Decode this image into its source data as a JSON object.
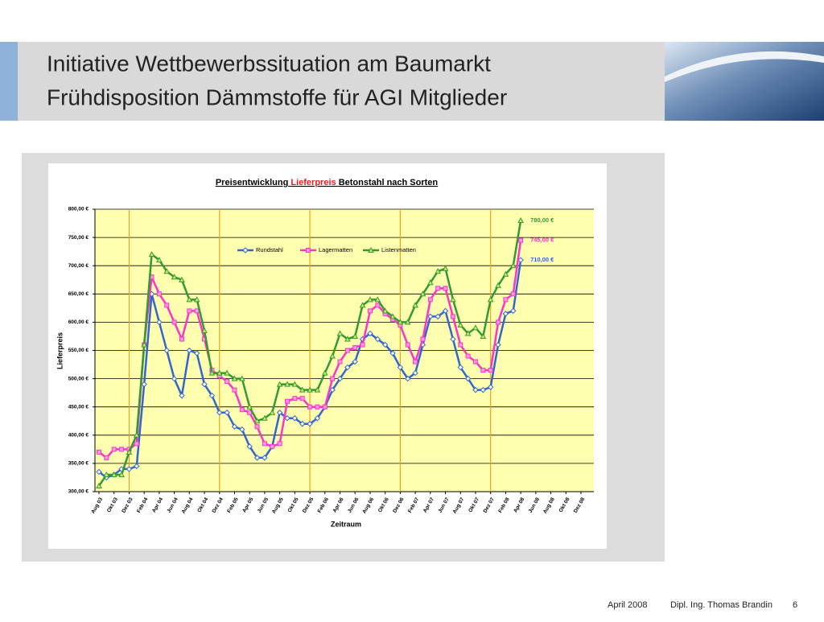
{
  "slide": {
    "title_lines": [
      "Initiative Wettbewerbssituation am Baumarkt",
      "Frühdisposition Dämmstoffe für AGI Mitglieder"
    ],
    "footer": {
      "date": "April 2008",
      "author": "Dipl. Ing. Thomas Brandin",
      "page": "6"
    }
  },
  "chart_data": {
    "type": "line",
    "title": [
      "Preisentwicklung",
      "Lieferpreis",
      "Betonstahl nach Sorten"
    ],
    "x_label": "Zeitraum",
    "y_label": "Lieferpreis",
    "categories": [
      "Aug 03",
      null,
      "Okt 03",
      null,
      "Dez 03",
      null,
      "Feb 04",
      null,
      "Apr 04",
      null,
      "Jun 04",
      null,
      "Aug 04",
      null,
      "Okt 04",
      null,
      "Dez 04",
      null,
      "Feb 05",
      null,
      "Apr 05",
      null,
      "Jun 05",
      null,
      "Aug 05",
      null,
      "Okt 05",
      null,
      "Dez 05",
      null,
      "Feb 06",
      null,
      "Apr 06",
      null,
      "Jun 06",
      null,
      "Aug 06",
      null,
      "Okt 06",
      null,
      "Dez 06",
      null,
      "Feb 07",
      null,
      "Apr 07",
      null,
      "Jun 07",
      null,
      "Aug 07",
      null,
      "Okt 07",
      null,
      "Dez 07",
      null,
      "Feb 08",
      null,
      "Apr 08",
      null,
      "Jun 08",
      null,
      "Aug 08",
      null,
      "Okt 08",
      null,
      "Dez 08"
    ],
    "series": [
      {
        "name": "Rundstahl",
        "color": "#3366cc",
        "marker": "diamond",
        "values": [
          335,
          325,
          330,
          340,
          340,
          345,
          490,
          650,
          600,
          550,
          500,
          470,
          550,
          545,
          490,
          470,
          440,
          440,
          415,
          410,
          380,
          360,
          360,
          380,
          440,
          430,
          430,
          420,
          420,
          430,
          450,
          480,
          500,
          520,
          530,
          570,
          580,
          570,
          560,
          545,
          520,
          500,
          510,
          560,
          610,
          610,
          620,
          570,
          520,
          500,
          480,
          480,
          485,
          560,
          615,
          620,
          710,
          null,
          null,
          null,
          null,
          null,
          null,
          null,
          null
        ],
        "value_labels": [
          null,
          null,
          null,
          null,
          null,
          null,
          null,
          null,
          null,
          null,
          null,
          null,
          null,
          null,
          null,
          null,
          null,
          null,
          null,
          null,
          null,
          null,
          null,
          null,
          null,
          null,
          null,
          null,
          null,
          null,
          null,
          null,
          null,
          null,
          null,
          null,
          null,
          null,
          null,
          null,
          null,
          null,
          null,
          null,
          null,
          null,
          null,
          null,
          null,
          null,
          null,
          null,
          null,
          null,
          null,
          null,
          "710,00 €",
          null,
          null,
          null,
          null,
          null,
          null,
          null,
          null
        ]
      },
      {
        "name": "Lagermatten",
        "color": "#ff33cc",
        "marker": "square",
        "values": [
          370,
          360,
          375,
          375,
          375,
          385,
          560,
          680,
          650,
          630,
          600,
          570,
          620,
          620,
          570,
          515,
          505,
          495,
          480,
          445,
          440,
          415,
          385,
          380,
          385,
          460,
          465,
          465,
          450,
          450,
          450,
          500,
          530,
          550,
          555,
          560,
          620,
          630,
          615,
          605,
          595,
          560,
          530,
          570,
          640,
          660,
          660,
          610,
          560,
          540,
          530,
          515,
          515,
          600,
          640,
          650,
          745,
          null,
          null,
          null,
          null,
          null,
          null,
          null,
          null
        ],
        "value_labels": [
          null,
          null,
          null,
          null,
          null,
          null,
          null,
          null,
          null,
          null,
          null,
          null,
          null,
          null,
          null,
          null,
          null,
          null,
          null,
          null,
          null,
          null,
          null,
          null,
          null,
          null,
          null,
          null,
          null,
          null,
          null,
          null,
          null,
          null,
          null,
          null,
          null,
          null,
          null,
          null,
          null,
          null,
          null,
          null,
          null,
          null,
          null,
          null,
          null,
          null,
          null,
          null,
          null,
          null,
          null,
          null,
          "745,00 €",
          null,
          null,
          null,
          null,
          null,
          null,
          null,
          null
        ]
      },
      {
        "name": "Listenmatten",
        "color": "#339933",
        "marker": "triangle",
        "values": [
          310,
          330,
          330,
          330,
          370,
          400,
          560,
          720,
          710,
          690,
          680,
          675,
          640,
          640,
          585,
          510,
          510,
          510,
          500,
          500,
          450,
          425,
          430,
          440,
          490,
          490,
          490,
          480,
          480,
          480,
          510,
          540,
          580,
          570,
          575,
          630,
          640,
          640,
          620,
          610,
          600,
          600,
          630,
          650,
          670,
          690,
          695,
          640,
          595,
          580,
          590,
          575,
          640,
          665,
          685,
          700,
          780,
          null,
          null,
          null,
          null,
          null,
          null,
          null,
          null
        ],
        "value_labels": [
          null,
          null,
          null,
          null,
          null,
          null,
          null,
          null,
          null,
          null,
          null,
          null,
          null,
          null,
          null,
          null,
          null,
          null,
          null,
          null,
          null,
          null,
          null,
          null,
          null,
          null,
          null,
          null,
          null,
          null,
          null,
          null,
          null,
          null,
          null,
          null,
          null,
          null,
          null,
          null,
          null,
          null,
          null,
          null,
          null,
          null,
          null,
          null,
          null,
          null,
          null,
          null,
          null,
          null,
          null,
          null,
          "780,00 €",
          null,
          null,
          null,
          null,
          null,
          null,
          null,
          null
        ]
      }
    ],
    "ylim": [
      300,
      800
    ],
    "yticks": [
      {
        "value": 300,
        "label": "300,00 €"
      },
      {
        "value": 350,
        "label": "350,00 €"
      },
      {
        "value": 400,
        "label": "400,00 €"
      },
      {
        "value": 450,
        "label": "450,00 €"
      },
      {
        "value": 500,
        "label": "500,00 €"
      },
      {
        "value": 550,
        "label": "550,00 €"
      },
      {
        "value": 600,
        "label": "600,00 €"
      },
      {
        "value": 650,
        "label": "650,00 €"
      },
      {
        "value": 700,
        "label": "700,00 €"
      },
      {
        "value": 750,
        "label": "750,00 €"
      },
      {
        "value": 800,
        "label": "800,00 €"
      }
    ],
    "grid": true
  }
}
